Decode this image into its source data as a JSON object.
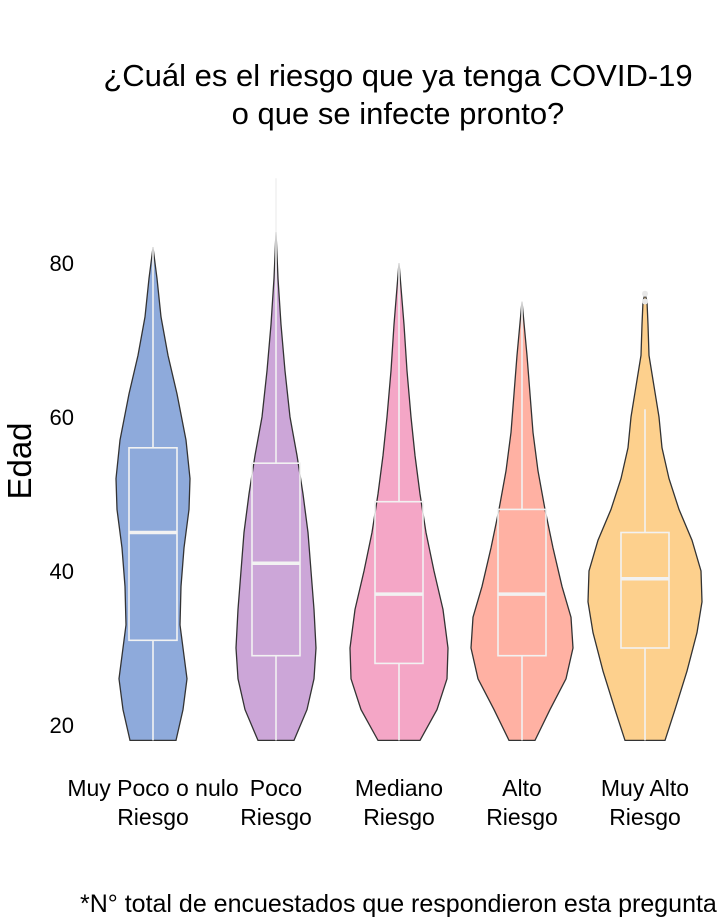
{
  "chart_data": {
    "type": "violin",
    "title": [
      "¿Cuál es el riesgo que ya tenga COVID-19",
      "o que se infecte pronto?"
    ],
    "xlabel": "",
    "ylabel": "Edad",
    "ylim": [
      18,
      92
    ],
    "yticks": [
      20,
      40,
      60,
      80
    ],
    "grid": false,
    "legend": "none",
    "footnote": "*N° total de encuestados que respondieron esta pregunta",
    "categories": [
      {
        "label": [
          "Muy Poco o nulo",
          "Riesgo"
        ],
        "color": "#8eaadb",
        "box": {
          "min": 18,
          "q1": 31,
          "median": 45,
          "q3": 56,
          "max": 82
        },
        "outliers": []
      },
      {
        "label": [
          "Poco",
          "Riesgo"
        ],
        "color": "#cca6d8",
        "box": {
          "min": 18,
          "q1": 29,
          "median": 41,
          "q3": 54,
          "max": 91
        },
        "outliers": []
      },
      {
        "label": [
          "Mediano",
          "Riesgo"
        ],
        "color": "#f4a6c6",
        "box": {
          "min": 18,
          "q1": 28,
          "median": 37,
          "q3": 49,
          "max": 80
        },
        "outliers": []
      },
      {
        "label": [
          "Alto",
          "Riesgo"
        ],
        "color": "#ffb1a3",
        "box": {
          "min": 18,
          "q1": 29,
          "median": 37,
          "q3": 48,
          "max": 75
        },
        "outliers": []
      },
      {
        "label": [
          "Muy Alto",
          "Riesgo"
        ],
        "color": "#fdd08d",
        "box": {
          "min": 18,
          "q1": 30,
          "median": 39,
          "q3": 45,
          "max": 61
        },
        "outliers": [
          75,
          76
        ]
      }
    ]
  }
}
